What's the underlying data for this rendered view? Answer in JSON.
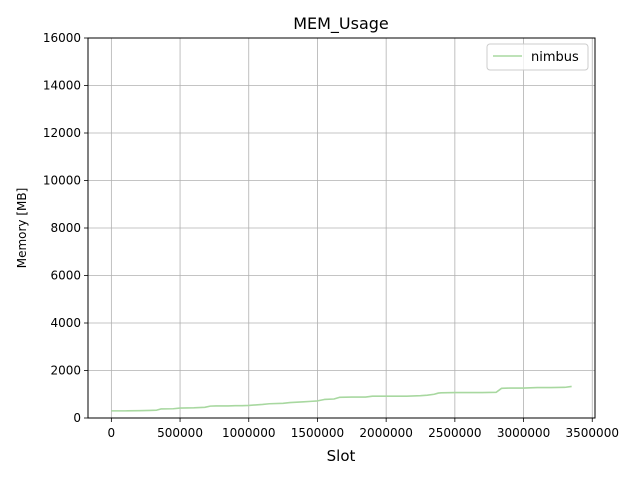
{
  "chart_data": {
    "type": "line",
    "title": "MEM_Usage",
    "xlabel": "Slot",
    "ylabel": "Memory [MB]",
    "xlim": [
      -170000,
      3520000
    ],
    "ylim": [
      0,
      16000
    ],
    "xticks": [
      0,
      500000,
      1000000,
      1500000,
      2000000,
      2500000,
      3000000,
      3500000
    ],
    "xtick_labels": [
      "0",
      "500000",
      "1000000",
      "1500000",
      "2000000",
      "2500000",
      "3000000",
      "3500000"
    ],
    "yticks": [
      0,
      2000,
      4000,
      6000,
      8000,
      10000,
      12000,
      14000,
      16000
    ],
    "ytick_labels": [
      "0",
      "2000",
      "4000",
      "6000",
      "8000",
      "10000",
      "12000",
      "14000",
      "16000"
    ],
    "grid": true,
    "legend_position": "top-right",
    "series": [
      {
        "name": "nimbus",
        "color": "#a8d8a0",
        "x": [
          0,
          100000,
          200000,
          280000,
          330000,
          360000,
          450000,
          500000,
          600000,
          680000,
          720000,
          760000,
          850000,
          900000,
          950000,
          1000000,
          1100000,
          1150000,
          1250000,
          1300000,
          1400000,
          1450000,
          1500000,
          1550000,
          1620000,
          1660000,
          1750000,
          1850000,
          1900000,
          1950000,
          2050000,
          2150000,
          2250000,
          2300000,
          2350000,
          2380000,
          2400000,
          2500000,
          2600000,
          2700000,
          2800000,
          2840000,
          2900000,
          3000000,
          3050000,
          3100000,
          3200000,
          3300000,
          3350000
        ],
        "y": [
          300,
          300,
          310,
          320,
          330,
          380,
          390,
          420,
          430,
          450,
          500,
          510,
          510,
          520,
          520,
          530,
          570,
          600,
          620,
          650,
          680,
          700,
          720,
          780,
          800,
          870,
          880,
          880,
          920,
          920,
          920,
          920,
          940,
          960,
          1000,
          1050,
          1060,
          1070,
          1070,
          1070,
          1080,
          1250,
          1260,
          1260,
          1270,
          1280,
          1280,
          1290,
          1330
        ]
      }
    ]
  }
}
